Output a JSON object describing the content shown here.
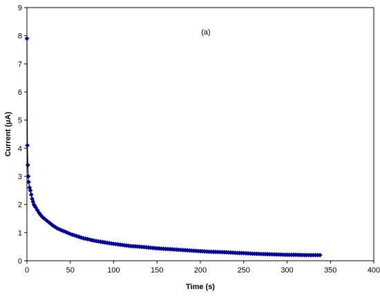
{
  "chart_data": {
    "type": "scatter",
    "title": "",
    "annotation": "(a)",
    "xlabel": "Time (s)",
    "ylabel": "Current (μA)",
    "xlim": [
      0,
      400
    ],
    "ylim": [
      0,
      9
    ],
    "xticks": [
      "0",
      "50",
      "100",
      "150",
      "200",
      "250",
      "300",
      "350",
      "400"
    ],
    "yticks": [
      "0",
      "1",
      "2",
      "3",
      "4",
      "5",
      "6",
      "7",
      "8",
      "9"
    ],
    "grid": false,
    "legend": "none",
    "marker": "diamond",
    "series_color": "#00008B",
    "line_color": "#000000",
    "series": [
      {
        "points": [
          [
            0,
            7.9
          ],
          [
            0.5,
            4.1
          ],
          [
            1,
            3.4
          ],
          [
            1.5,
            3.0
          ],
          [
            2,
            2.8
          ],
          [
            3,
            2.6
          ],
          [
            4,
            2.5
          ],
          [
            5,
            2.35
          ],
          [
            6,
            2.2
          ],
          [
            7,
            2.1
          ],
          [
            8,
            2.0
          ],
          [
            9,
            1.95
          ],
          [
            10,
            1.9
          ],
          [
            12,
            1.8
          ],
          [
            14,
            1.7
          ],
          [
            16,
            1.62
          ],
          [
            18,
            1.55
          ],
          [
            20,
            1.5
          ],
          [
            23,
            1.42
          ],
          [
            26,
            1.35
          ],
          [
            30,
            1.25
          ],
          [
            35,
            1.15
          ],
          [
            40,
            1.08
          ],
          [
            45,
            1.02
          ],
          [
            50,
            0.95
          ],
          [
            55,
            0.9
          ],
          [
            60,
            0.85
          ],
          [
            65,
            0.8
          ],
          [
            70,
            0.77
          ],
          [
            75,
            0.73
          ],
          [
            80,
            0.7
          ],
          [
            90,
            0.65
          ],
          [
            100,
            0.6
          ],
          [
            110,
            0.56
          ],
          [
            120,
            0.52
          ],
          [
            130,
            0.5
          ],
          [
            140,
            0.47
          ],
          [
            150,
            0.44
          ],
          [
            160,
            0.42
          ],
          [
            170,
            0.4
          ],
          [
            180,
            0.38
          ],
          [
            190,
            0.36
          ],
          [
            200,
            0.34
          ],
          [
            210,
            0.32
          ],
          [
            220,
            0.31
          ],
          [
            230,
            0.3
          ],
          [
            240,
            0.28
          ],
          [
            250,
            0.27
          ],
          [
            260,
            0.25
          ],
          [
            270,
            0.24
          ],
          [
            280,
            0.23
          ],
          [
            290,
            0.22
          ],
          [
            300,
            0.21
          ],
          [
            310,
            0.21
          ],
          [
            320,
            0.2
          ],
          [
            330,
            0.2
          ],
          [
            338,
            0.2
          ]
        ]
      }
    ]
  }
}
